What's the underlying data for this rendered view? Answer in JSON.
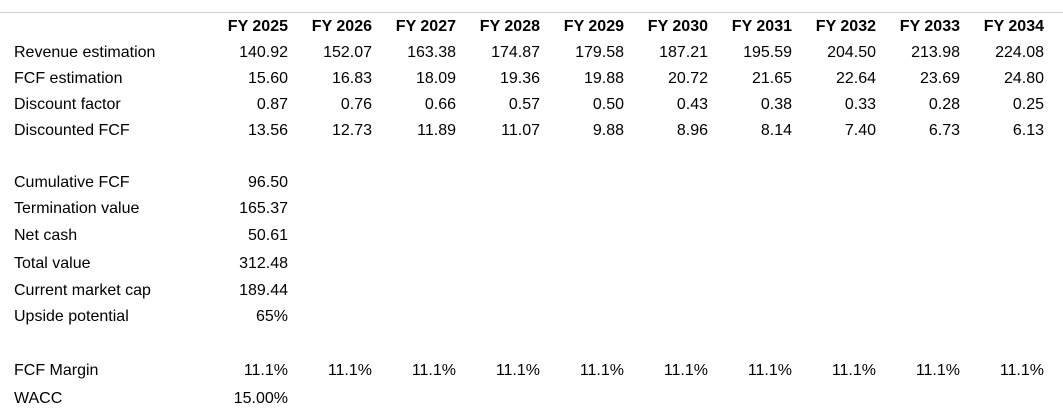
{
  "header": {
    "years": [
      "FY 2025",
      "FY 2026",
      "FY 2027",
      "FY 2028",
      "FY 2029",
      "FY 2030",
      "FY 2031",
      "FY 2032",
      "FY 2033",
      "FY 2034"
    ]
  },
  "projection_rows": [
    {
      "label": "Revenue estimation",
      "values": [
        "140.92",
        "152.07",
        "163.38",
        "174.87",
        "179.58",
        "187.21",
        "195.59",
        "204.50",
        "213.98",
        "224.08"
      ]
    },
    {
      "label": "FCF estimation",
      "values": [
        "15.60",
        "16.83",
        "18.09",
        "19.36",
        "19.88",
        "20.72",
        "21.65",
        "22.64",
        "23.69",
        "24.80"
      ]
    },
    {
      "label": "Discount factor",
      "values": [
        "0.87",
        "0.76",
        "0.66",
        "0.57",
        "0.50",
        "0.43",
        "0.38",
        "0.33",
        "0.28",
        "0.25"
      ]
    },
    {
      "label": "Discounted FCF",
      "values": [
        "13.56",
        "12.73",
        "11.89",
        "11.07",
        "9.88",
        "8.96",
        "8.14",
        "7.40",
        "6.73",
        "6.13"
      ]
    }
  ],
  "summary_rows": [
    {
      "label": "Cumulative FCF",
      "value": "96.50"
    },
    {
      "label": "Termination value",
      "value": "165.37"
    },
    {
      "label": "Net cash",
      "value": "50.61"
    },
    {
      "label": "Total value",
      "value": "312.48"
    },
    {
      "label": "Current market cap",
      "value": "189.44"
    },
    {
      "label": "Upside potential",
      "value": "65%"
    }
  ],
  "assumptions": {
    "fcf_margin": {
      "label": "FCF Margin",
      "values": [
        "11.1%",
        "11.1%",
        "11.1%",
        "11.1%",
        "11.1%",
        "11.1%",
        "11.1%",
        "11.1%",
        "11.1%",
        "11.1%"
      ]
    },
    "wacc": {
      "label": "WACC",
      "value": "15.00%"
    }
  }
}
